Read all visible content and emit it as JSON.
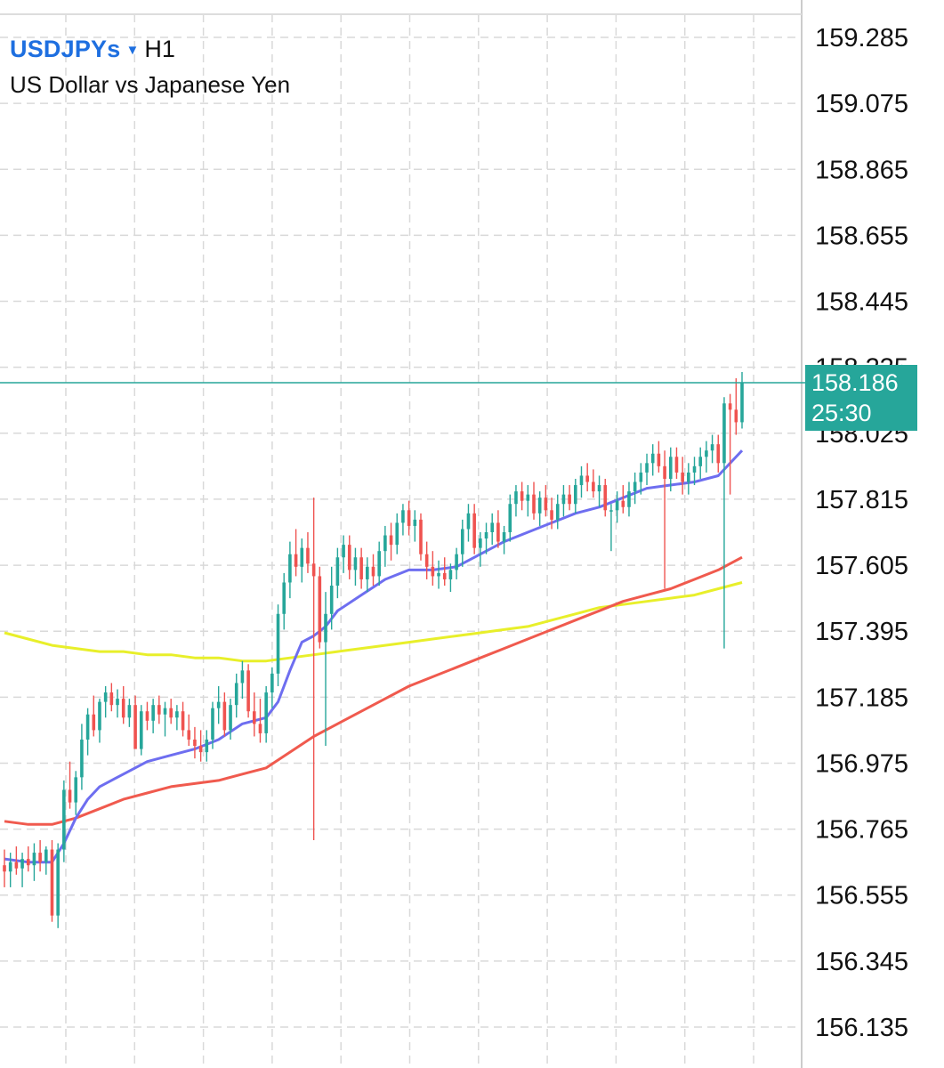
{
  "header": {
    "symbol": "USDJPYs",
    "dropdown_icon": "caret-down-icon",
    "timeframe": "H1",
    "description": "US Dollar vs Japanese Yen"
  },
  "price_tag": {
    "price": "158.186",
    "timer": "25:30"
  },
  "colors": {
    "bull": "#26a69a",
    "bear": "#ef5350",
    "ma_fast": "#6e6ef0",
    "ma_mid": "#f05a4e",
    "ma_slow": "#e8ef2a",
    "grid": "#d9d9d9",
    "current_price_line": "#26a69a",
    "accent": "#1e6fe0"
  },
  "chart_data": {
    "type": "candlestick",
    "yticks": [
      "159.285",
      "159.075",
      "158.865",
      "158.655",
      "158.445",
      "158.235",
      "158.025",
      "157.815",
      "157.605",
      "157.395",
      "157.185",
      "156.975",
      "156.765",
      "156.555",
      "156.345",
      "156.135"
    ],
    "ylim": [
      156.04,
      159.42
    ],
    "current_price": 158.186,
    "candle_count": 125,
    "grid": true,
    "candles": [
      [
        156.65,
        156.7,
        156.58,
        156.63
      ],
      [
        156.63,
        156.69,
        156.58,
        156.66
      ],
      [
        156.66,
        156.71,
        156.62,
        156.64
      ],
      [
        156.64,
        156.69,
        156.58,
        156.67
      ],
      [
        156.67,
        156.71,
        156.63,
        156.65
      ],
      [
        156.65,
        156.72,
        156.6,
        156.69
      ],
      [
        156.69,
        156.73,
        156.63,
        156.66
      ],
      [
        156.66,
        156.71,
        156.62,
        156.7
      ],
      [
        156.7,
        156.73,
        156.47,
        156.49
      ],
      [
        156.49,
        156.72,
        156.45,
        156.7
      ],
      [
        156.7,
        156.92,
        156.66,
        156.89
      ],
      [
        156.89,
        156.98,
        156.83,
        156.85
      ],
      [
        156.85,
        156.95,
        156.81,
        156.93
      ],
      [
        156.93,
        157.1,
        156.89,
        157.05
      ],
      [
        157.05,
        157.15,
        157.0,
        157.13
      ],
      [
        157.13,
        157.19,
        157.06,
        157.08
      ],
      [
        157.08,
        157.18,
        157.04,
        157.17
      ],
      [
        157.17,
        157.22,
        157.12,
        157.2
      ],
      [
        157.2,
        157.23,
        157.14,
        157.16
      ],
      [
        157.16,
        157.21,
        157.12,
        157.18
      ],
      [
        157.18,
        157.22,
        157.1,
        157.12
      ],
      [
        157.12,
        157.18,
        157.09,
        157.16
      ],
      [
        157.16,
        157.19,
        157.05,
        157.02
      ],
      [
        157.02,
        157.16,
        157.0,
        157.14
      ],
      [
        157.14,
        157.17,
        157.08,
        157.11
      ],
      [
        157.11,
        157.18,
        157.07,
        157.16
      ],
      [
        157.16,
        157.19,
        157.1,
        157.13
      ],
      [
        157.13,
        157.17,
        157.06,
        157.15
      ],
      [
        157.15,
        157.18,
        157.1,
        157.12
      ],
      [
        157.12,
        157.16,
        157.08,
        157.14
      ],
      [
        157.14,
        157.17,
        157.06,
        157.08
      ],
      [
        157.08,
        157.13,
        157.03,
        157.05
      ],
      [
        157.05,
        157.09,
        156.99,
        157.03
      ],
      [
        157.03,
        157.08,
        156.98,
        157.01
      ],
      [
        157.01,
        157.08,
        156.98,
        157.05
      ],
      [
        157.05,
        157.17,
        157.02,
        157.15
      ],
      [
        157.15,
        157.22,
        157.1,
        157.17
      ],
      [
        157.17,
        157.2,
        157.06,
        157.08
      ],
      [
        157.08,
        157.18,
        157.05,
        157.16
      ],
      [
        157.16,
        157.26,
        157.12,
        157.23
      ],
      [
        157.23,
        157.3,
        157.18,
        157.27
      ],
      [
        157.27,
        157.29,
        157.12,
        157.14
      ],
      [
        157.14,
        157.2,
        157.06,
        157.1
      ],
      [
        157.1,
        157.18,
        157.04,
        157.07
      ],
      [
        157.07,
        157.22,
        157.04,
        157.2
      ],
      [
        157.2,
        157.28,
        157.15,
        157.26
      ],
      [
        157.26,
        157.48,
        157.22,
        157.45
      ],
      [
        157.45,
        157.58,
        157.4,
        157.55
      ],
      [
        157.55,
        157.68,
        157.5,
        157.64
      ],
      [
        157.64,
        157.72,
        157.57,
        157.6
      ],
      [
        157.6,
        157.69,
        157.55,
        157.66
      ],
      [
        157.66,
        157.71,
        157.58,
        157.61
      ],
      [
        157.61,
        157.82,
        156.73,
        157.57
      ],
      [
        157.57,
        157.6,
        157.34,
        157.36
      ],
      [
        157.36,
        157.52,
        157.03,
        157.45
      ],
      [
        157.45,
        157.6,
        157.4,
        157.54
      ],
      [
        157.54,
        157.66,
        157.5,
        157.63
      ],
      [
        157.63,
        157.7,
        157.58,
        157.67
      ],
      [
        157.67,
        157.7,
        157.56,
        157.59
      ],
      [
        157.59,
        157.66,
        157.54,
        157.63
      ],
      [
        157.63,
        157.66,
        157.53,
        157.56
      ],
      [
        157.56,
        157.63,
        157.52,
        157.6
      ],
      [
        157.6,
        157.64,
        157.54,
        157.57
      ],
      [
        157.57,
        157.68,
        157.54,
        157.65
      ],
      [
        157.65,
        157.73,
        157.6,
        157.7
      ],
      [
        157.7,
        157.74,
        157.62,
        157.67
      ],
      [
        157.67,
        157.77,
        157.64,
        157.74
      ],
      [
        157.74,
        157.8,
        157.7,
        157.78
      ],
      [
        157.78,
        157.81,
        157.7,
        157.73
      ],
      [
        157.73,
        157.78,
        157.68,
        157.75
      ],
      [
        157.75,
        157.77,
        157.62,
        157.64
      ],
      [
        157.64,
        157.68,
        157.56,
        157.6
      ],
      [
        157.6,
        157.65,
        157.54,
        157.57
      ],
      [
        157.57,
        157.62,
        157.53,
        157.58
      ],
      [
        157.58,
        157.63,
        157.54,
        157.56
      ],
      [
        157.56,
        157.61,
        157.52,
        157.59
      ],
      [
        157.59,
        157.66,
        157.56,
        157.64
      ],
      [
        157.64,
        157.75,
        157.6,
        157.72
      ],
      [
        157.72,
        157.8,
        157.68,
        157.77
      ],
      [
        157.77,
        157.8,
        157.64,
        157.66
      ],
      [
        157.66,
        157.71,
        157.6,
        157.69
      ],
      [
        157.69,
        157.74,
        157.64,
        157.71
      ],
      [
        157.71,
        157.77,
        157.67,
        157.74
      ],
      [
        157.74,
        157.78,
        157.66,
        157.68
      ],
      [
        157.68,
        157.73,
        157.64,
        157.71
      ],
      [
        157.71,
        157.83,
        157.68,
        157.8
      ],
      [
        157.8,
        157.86,
        157.76,
        157.84
      ],
      [
        157.84,
        157.87,
        157.78,
        157.81
      ],
      [
        157.81,
        157.86,
        157.76,
        157.83
      ],
      [
        157.83,
        157.87,
        157.75,
        157.77
      ],
      [
        157.77,
        157.84,
        157.73,
        157.82
      ],
      [
        157.82,
        157.86,
        157.76,
        157.78
      ],
      [
        157.78,
        157.82,
        157.72,
        157.75
      ],
      [
        157.75,
        157.83,
        157.72,
        157.8
      ],
      [
        157.8,
        157.86,
        157.76,
        157.83
      ],
      [
        157.83,
        157.86,
        157.78,
        157.8
      ],
      [
        157.8,
        157.88,
        157.77,
        157.86
      ],
      [
        157.86,
        157.92,
        157.82,
        157.89
      ],
      [
        157.89,
        157.93,
        157.84,
        157.87
      ],
      [
        157.87,
        157.91,
        157.82,
        157.84
      ],
      [
        157.84,
        157.89,
        157.79,
        157.86
      ],
      [
        157.86,
        157.88,
        157.76,
        157.78
      ],
      [
        157.78,
        157.8,
        157.65,
        157.78
      ],
      [
        157.78,
        157.84,
        157.74,
        157.81
      ],
      [
        157.81,
        157.86,
        157.77,
        157.79
      ],
      [
        157.79,
        157.87,
        157.76,
        157.84
      ],
      [
        157.84,
        157.9,
        157.8,
        157.87
      ],
      [
        157.87,
        157.93,
        157.83,
        157.9
      ],
      [
        157.9,
        157.96,
        157.86,
        157.93
      ],
      [
        157.93,
        157.99,
        157.89,
        157.96
      ],
      [
        157.96,
        158.0,
        157.9,
        157.92
      ],
      [
        157.92,
        157.97,
        157.53,
        157.88
      ],
      [
        157.88,
        157.98,
        157.84,
        157.95
      ],
      [
        157.95,
        157.98,
        157.88,
        157.9
      ],
      [
        157.9,
        157.95,
        157.83,
        157.87
      ],
      [
        157.87,
        157.93,
        157.83,
        157.9
      ],
      [
        157.9,
        157.95,
        157.86,
        157.92
      ],
      [
        157.92,
        157.98,
        157.88,
        157.95
      ],
      [
        157.95,
        158.0,
        157.9,
        157.97
      ],
      [
        157.97,
        158.02,
        157.93,
        157.99
      ],
      [
        157.99,
        158.02,
        157.9,
        157.93
      ],
      [
        157.93,
        158.14,
        157.34,
        158.12
      ],
      [
        158.12,
        158.15,
        157.83,
        158.1
      ],
      [
        158.1,
        158.2,
        158.02,
        158.06
      ],
      [
        158.06,
        158.22,
        158.04,
        158.186
      ]
    ],
    "series": [
      {
        "key": "ma_slow",
        "values": [
          [
            0,
            157.39
          ],
          [
            4,
            157.37
          ],
          [
            8,
            157.35
          ],
          [
            12,
            157.34
          ],
          [
            16,
            157.33
          ],
          [
            20,
            157.33
          ],
          [
            24,
            157.32
          ],
          [
            28,
            157.32
          ],
          [
            32,
            157.31
          ],
          [
            36,
            157.31
          ],
          [
            40,
            157.3
          ],
          [
            44,
            157.3
          ],
          [
            48,
            157.31
          ],
          [
            52,
            157.32
          ],
          [
            56,
            157.33
          ],
          [
            60,
            157.34
          ],
          [
            64,
            157.35
          ],
          [
            68,
            157.36
          ],
          [
            72,
            157.37
          ],
          [
            76,
            157.38
          ],
          [
            80,
            157.39
          ],
          [
            84,
            157.4
          ],
          [
            88,
            157.41
          ],
          [
            92,
            157.43
          ],
          [
            96,
            157.45
          ],
          [
            100,
            157.47
          ],
          [
            104,
            157.48
          ],
          [
            108,
            157.49
          ],
          [
            112,
            157.5
          ],
          [
            116,
            157.51
          ],
          [
            120,
            157.53
          ],
          [
            124,
            157.55
          ]
        ]
      },
      {
        "key": "ma_mid",
        "values": [
          [
            0,
            156.79
          ],
          [
            4,
            156.78
          ],
          [
            8,
            156.78
          ],
          [
            12,
            156.8
          ],
          [
            16,
            156.83
          ],
          [
            20,
            156.86
          ],
          [
            24,
            156.88
          ],
          [
            28,
            156.9
          ],
          [
            32,
            156.91
          ],
          [
            36,
            156.92
          ],
          [
            40,
            156.94
          ],
          [
            44,
            156.96
          ],
          [
            48,
            157.01
          ],
          [
            52,
            157.06
          ],
          [
            56,
            157.1
          ],
          [
            60,
            157.14
          ],
          [
            64,
            157.18
          ],
          [
            68,
            157.22
          ],
          [
            72,
            157.25
          ],
          [
            76,
            157.28
          ],
          [
            80,
            157.31
          ],
          [
            84,
            157.34
          ],
          [
            88,
            157.37
          ],
          [
            92,
            157.4
          ],
          [
            96,
            157.43
          ],
          [
            100,
            157.46
          ],
          [
            104,
            157.49
          ],
          [
            108,
            157.51
          ],
          [
            112,
            157.53
          ],
          [
            116,
            157.56
          ],
          [
            120,
            157.59
          ],
          [
            124,
            157.63
          ]
        ]
      },
      {
        "key": "ma_fast",
        "values": [
          [
            0,
            156.67
          ],
          [
            4,
            156.66
          ],
          [
            8,
            156.66
          ],
          [
            10,
            156.72
          ],
          [
            12,
            156.8
          ],
          [
            14,
            156.86
          ],
          [
            16,
            156.9
          ],
          [
            20,
            156.94
          ],
          [
            24,
            156.98
          ],
          [
            28,
            157.0
          ],
          [
            32,
            157.02
          ],
          [
            36,
            157.05
          ],
          [
            40,
            157.1
          ],
          [
            44,
            157.12
          ],
          [
            46,
            157.17
          ],
          [
            48,
            157.27
          ],
          [
            50,
            157.36
          ],
          [
            52,
            157.38
          ],
          [
            54,
            157.41
          ],
          [
            56,
            157.46
          ],
          [
            60,
            157.51
          ],
          [
            64,
            157.56
          ],
          [
            68,
            157.59
          ],
          [
            72,
            157.59
          ],
          [
            76,
            157.6
          ],
          [
            80,
            157.64
          ],
          [
            84,
            157.68
          ],
          [
            88,
            157.71
          ],
          [
            92,
            157.74
          ],
          [
            96,
            157.77
          ],
          [
            100,
            157.79
          ],
          [
            104,
            157.82
          ],
          [
            108,
            157.85
          ],
          [
            112,
            157.86
          ],
          [
            116,
            157.87
          ],
          [
            120,
            157.89
          ],
          [
            124,
            157.97
          ]
        ]
      }
    ]
  }
}
